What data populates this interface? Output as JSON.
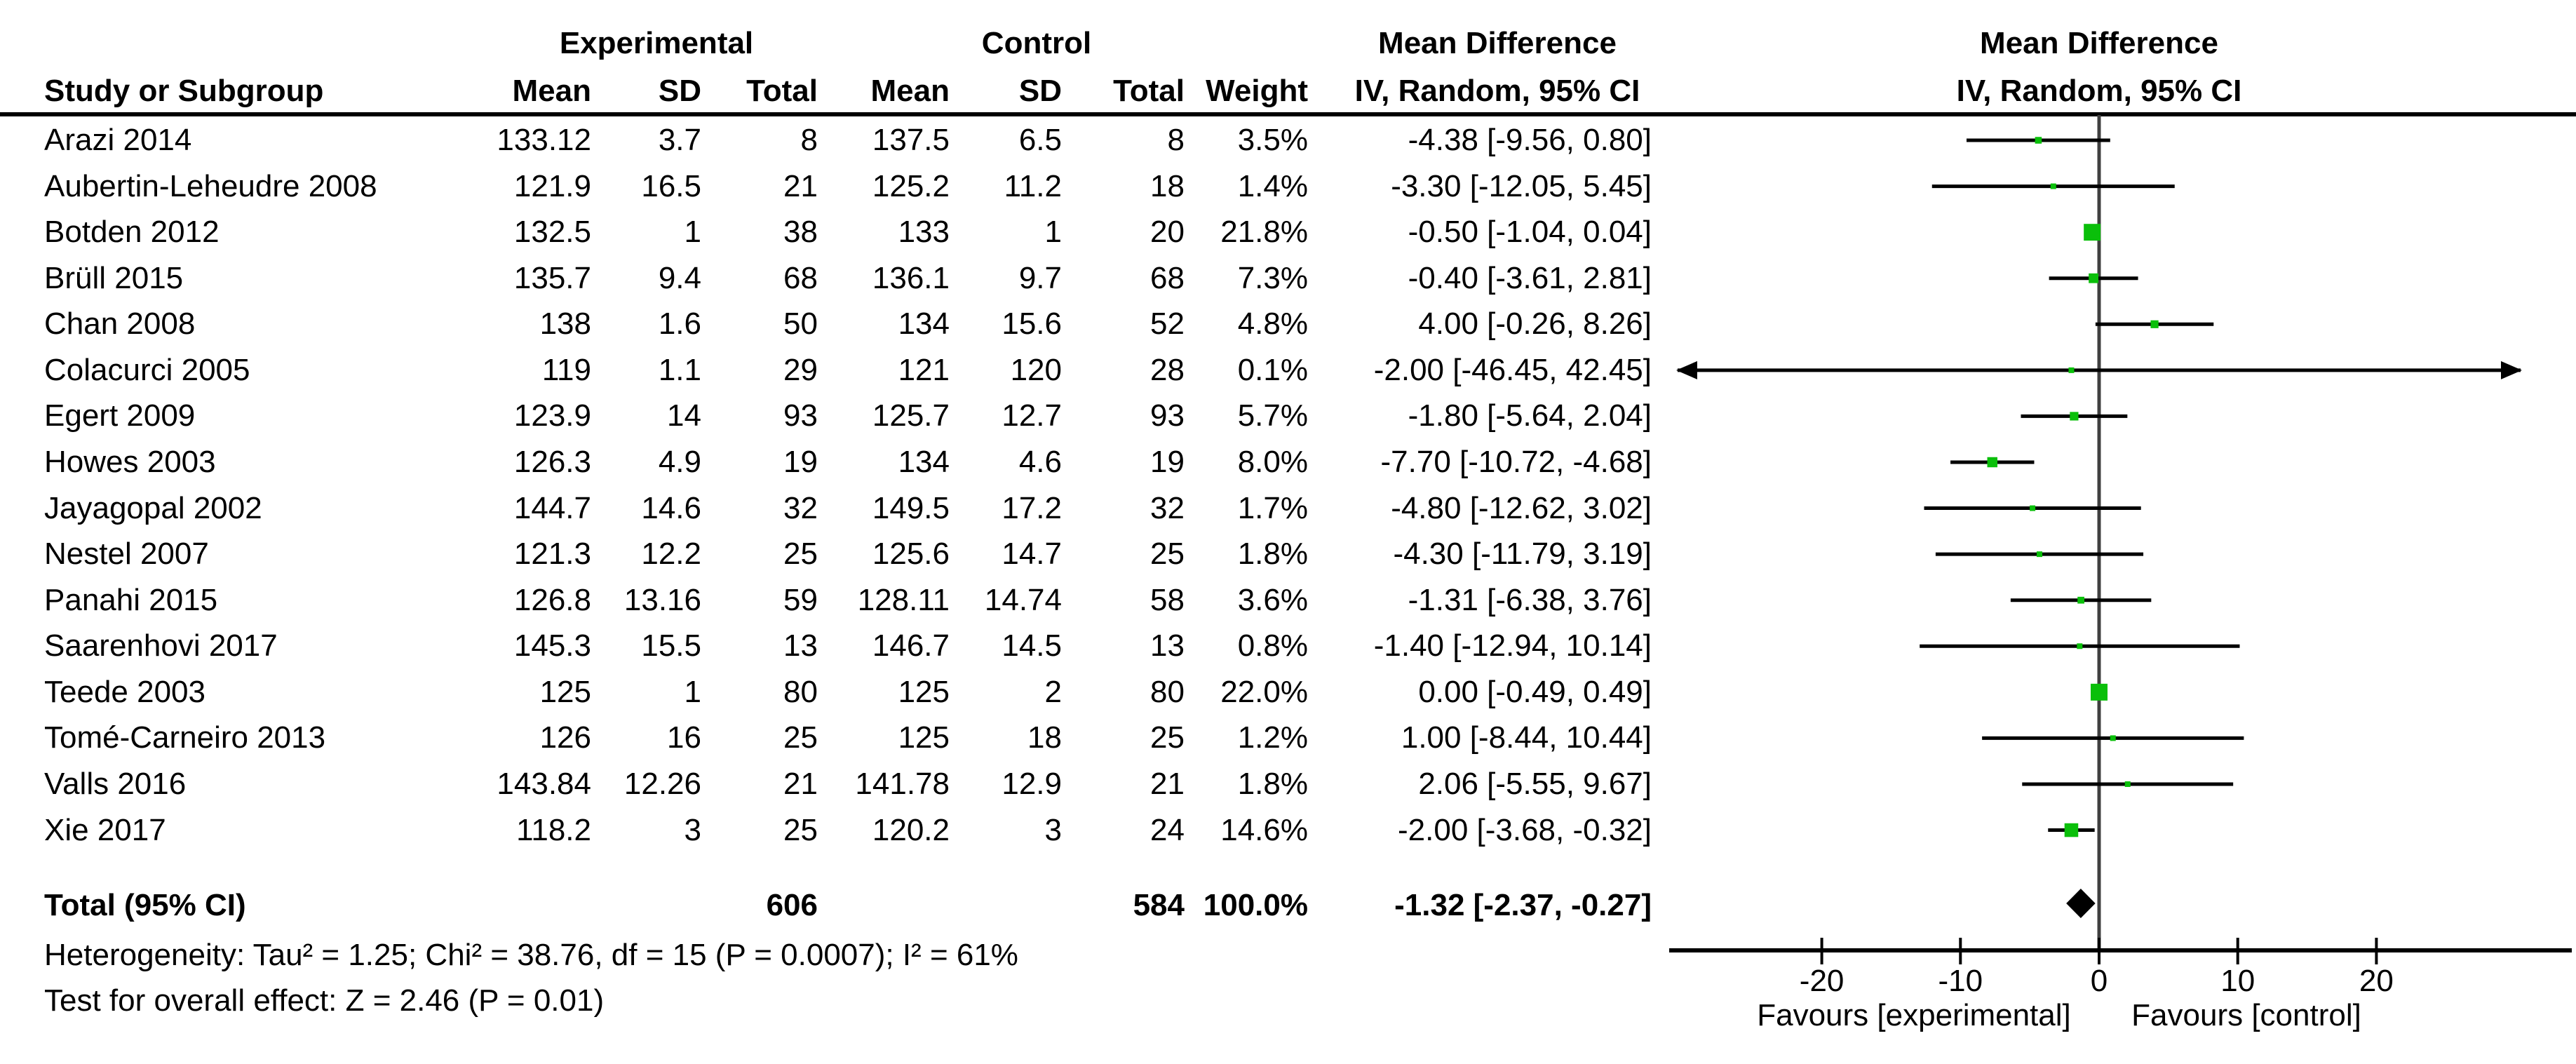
{
  "table_headers": {
    "study": "Study or Subgroup",
    "group_experimental": "Experimental",
    "group_control": "Control",
    "mean": "Mean",
    "sd": "SD",
    "total": "Total",
    "weight": "Weight",
    "md_title": "Mean Difference",
    "md_subtitle": "IV, Random, 95% CI"
  },
  "chart_data": {
    "type": "scatter",
    "title": "Forest plot — Mean Difference, IV, Random, 95% CI",
    "x_ticks": [
      -20,
      -10,
      0,
      10,
      20
    ],
    "xlim": [
      -30.8,
      34
    ],
    "arrow_clip": 30.4,
    "grid": false,
    "favours_left": "Favours [experimental]",
    "favours_right": "Favours [control]",
    "studies": [
      {
        "name": "Arazi 2014",
        "exp_mean": "133.12",
        "exp_sd": "3.7",
        "exp_total": "8",
        "ctl_mean": "137.5",
        "ctl_sd": "6.5",
        "ctl_total": "8",
        "weight": "3.5%",
        "weight_value": 3.5,
        "ci_label": "-4.38 [-9.56, 0.80]",
        "md": -4.38,
        "ci_low": -9.56,
        "ci_high": 0.8
      },
      {
        "name": "Aubertin-Leheudre 2008",
        "exp_mean": "121.9",
        "exp_sd": "16.5",
        "exp_total": "21",
        "ctl_mean": "125.2",
        "ctl_sd": "11.2",
        "ctl_total": "18",
        "weight": "1.4%",
        "weight_value": 1.4,
        "ci_label": "-3.30 [-12.05, 5.45]",
        "md": -3.3,
        "ci_low": -12.05,
        "ci_high": 5.45
      },
      {
        "name": "Botden 2012",
        "exp_mean": "132.5",
        "exp_sd": "1",
        "exp_total": "38",
        "ctl_mean": "133",
        "ctl_sd": "1",
        "ctl_total": "20",
        "weight": "21.8%",
        "weight_value": 21.8,
        "ci_label": "-0.50 [-1.04, 0.04]",
        "md": -0.5,
        "ci_low": -1.04,
        "ci_high": 0.04
      },
      {
        "name": "Brüll 2015",
        "exp_mean": "135.7",
        "exp_sd": "9.4",
        "exp_total": "68",
        "ctl_mean": "136.1",
        "ctl_sd": "9.7",
        "ctl_total": "68",
        "weight": "7.3%",
        "weight_value": 7.3,
        "ci_label": "-0.40 [-3.61, 2.81]",
        "md": -0.4,
        "ci_low": -3.61,
        "ci_high": 2.81
      },
      {
        "name": "Chan 2008",
        "exp_mean": "138",
        "exp_sd": "1.6",
        "exp_total": "50",
        "ctl_mean": "134",
        "ctl_sd": "15.6",
        "ctl_total": "52",
        "weight": "4.8%",
        "weight_value": 4.8,
        "ci_label": "4.00 [-0.26, 8.26]",
        "md": 4.0,
        "ci_low": -0.26,
        "ci_high": 8.26
      },
      {
        "name": "Colacurci 2005",
        "exp_mean": "119",
        "exp_sd": "1.1",
        "exp_total": "29",
        "ctl_mean": "121",
        "ctl_sd": "120",
        "ctl_total": "28",
        "weight": "0.1%",
        "weight_value": 0.1,
        "ci_label": "-2.00 [-46.45, 42.45]",
        "md": -2.0,
        "ci_low": -46.45,
        "ci_high": 42.45
      },
      {
        "name": "Egert 2009",
        "exp_mean": "123.9",
        "exp_sd": "14",
        "exp_total": "93",
        "ctl_mean": "125.7",
        "ctl_sd": "12.7",
        "ctl_total": "93",
        "weight": "5.7%",
        "weight_value": 5.7,
        "ci_label": "-1.80 [-5.64, 2.04]",
        "md": -1.8,
        "ci_low": -5.64,
        "ci_high": 2.04
      },
      {
        "name": "Howes 2003",
        "exp_mean": "126.3",
        "exp_sd": "4.9",
        "exp_total": "19",
        "ctl_mean": "134",
        "ctl_sd": "4.6",
        "ctl_total": "19",
        "weight": "8.0%",
        "weight_value": 8.0,
        "ci_label": "-7.70 [-10.72, -4.68]",
        "md": -7.7,
        "ci_low": -10.72,
        "ci_high": -4.68
      },
      {
        "name": "Jayagopal 2002",
        "exp_mean": "144.7",
        "exp_sd": "14.6",
        "exp_total": "32",
        "ctl_mean": "149.5",
        "ctl_sd": "17.2",
        "ctl_total": "32",
        "weight": "1.7%",
        "weight_value": 1.7,
        "ci_label": "-4.80 [-12.62, 3.02]",
        "md": -4.8,
        "ci_low": -12.62,
        "ci_high": 3.02
      },
      {
        "name": "Nestel 2007",
        "exp_mean": "121.3",
        "exp_sd": "12.2",
        "exp_total": "25",
        "ctl_mean": "125.6",
        "ctl_sd": "14.7",
        "ctl_total": "25",
        "weight": "1.8%",
        "weight_value": 1.8,
        "ci_label": "-4.30 [-11.79, 3.19]",
        "md": -4.3,
        "ci_low": -11.79,
        "ci_high": 3.19
      },
      {
        "name": "Panahi 2015",
        "exp_mean": "126.8",
        "exp_sd": "13.16",
        "exp_total": "59",
        "ctl_mean": "128.11",
        "ctl_sd": "14.74",
        "ctl_total": "58",
        "weight": "3.6%",
        "weight_value": 3.6,
        "ci_label": "-1.31 [-6.38, 3.76]",
        "md": -1.31,
        "ci_low": -6.38,
        "ci_high": 3.76
      },
      {
        "name": "Saarenhovi 2017",
        "exp_mean": "145.3",
        "exp_sd": "15.5",
        "exp_total": "13",
        "ctl_mean": "146.7",
        "ctl_sd": "14.5",
        "ctl_total": "13",
        "weight": "0.8%",
        "weight_value": 0.8,
        "ci_label": "-1.40 [-12.94, 10.14]",
        "md": -1.4,
        "ci_low": -12.94,
        "ci_high": 10.14
      },
      {
        "name": "Teede 2003",
        "exp_mean": "125",
        "exp_sd": "1",
        "exp_total": "80",
        "ctl_mean": "125",
        "ctl_sd": "2",
        "ctl_total": "80",
        "weight": "22.0%",
        "weight_value": 22.0,
        "ci_label": "0.00 [-0.49, 0.49]",
        "md": 0.0,
        "ci_low": -0.49,
        "ci_high": 0.49
      },
      {
        "name": "Tomé-Carneiro 2013",
        "exp_mean": "126",
        "exp_sd": "16",
        "exp_total": "25",
        "ctl_mean": "125",
        "ctl_sd": "18",
        "ctl_total": "25",
        "weight": "1.2%",
        "weight_value": 1.2,
        "ci_label": "1.00 [-8.44, 10.44]",
        "md": 1.0,
        "ci_low": -8.44,
        "ci_high": 10.44
      },
      {
        "name": "Valls 2016",
        "exp_mean": "143.84",
        "exp_sd": "12.26",
        "exp_total": "21",
        "ctl_mean": "141.78",
        "ctl_sd": "12.9",
        "ctl_total": "21",
        "weight": "1.8%",
        "weight_value": 1.8,
        "ci_label": "2.06 [-5.55, 9.67]",
        "md": 2.06,
        "ci_low": -5.55,
        "ci_high": 9.67
      },
      {
        "name": "Xie 2017",
        "exp_mean": "118.2",
        "exp_sd": "3",
        "exp_total": "25",
        "ctl_mean": "120.2",
        "ctl_sd": "3",
        "ctl_total": "24",
        "weight": "14.6%",
        "weight_value": 14.6,
        "ci_label": "-2.00 [-3.68, -0.32]",
        "md": -2.0,
        "ci_low": -3.68,
        "ci_high": -0.32
      }
    ],
    "total": {
      "label": "Total (95% CI)",
      "exp_total": "606",
      "ctl_total": "584",
      "weight": "100.0%",
      "weight_value": 100.0,
      "ci_label": "-1.32 [-2.37, -0.27]",
      "md": -1.32,
      "ci_low": -2.37,
      "ci_high": -0.27
    }
  },
  "footer": {
    "heterogeneity": "Heterogeneity: Tau² = 1.25; Chi² = 38.76, df = 15 (P = 0.0007); I² = 61%",
    "overall_effect": "Test for overall effect: Z = 2.46 (P = 0.01)"
  },
  "colors": {
    "marker_green": "#0abf0a",
    "ci_line": "#000000",
    "zero_line": "#404040",
    "axis_line": "#000000",
    "diamond": "#000000",
    "text": "#000000"
  }
}
